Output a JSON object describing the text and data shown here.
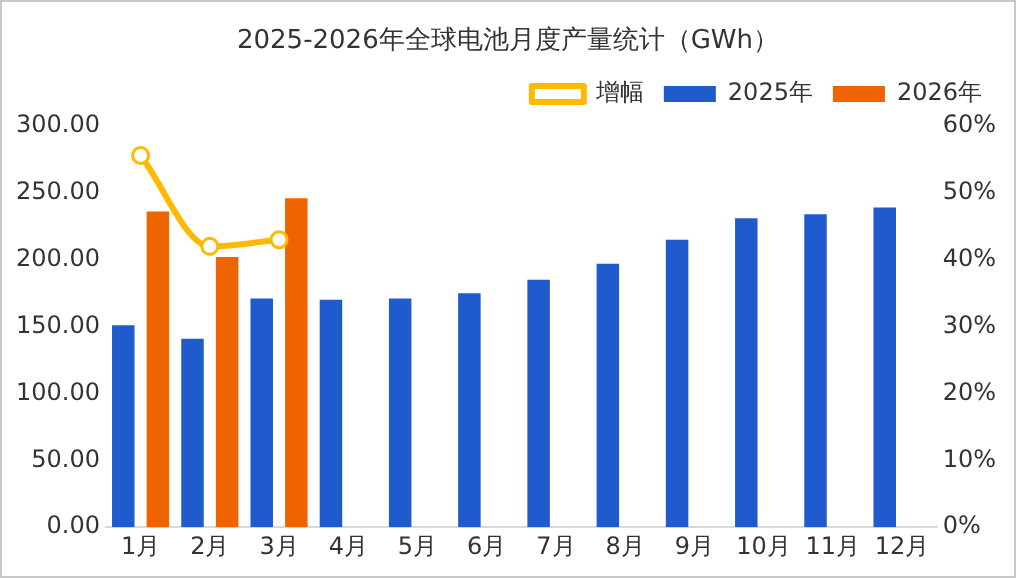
{
  "chart_data": {
    "type": "bar",
    "title": "2025-2026年全球电池月度产量统计（GWh）",
    "categories": [
      "1月",
      "2月",
      "3月",
      "4月",
      "5月",
      "6月",
      "7月",
      "8月",
      "9月",
      "10月",
      "11月",
      "12月"
    ],
    "series": [
      {
        "name": "2025年",
        "color": "#1f5bcc",
        "values": [
          151,
          141,
          171,
          170,
          171,
          175,
          185,
          197,
          215,
          231,
          234,
          239
        ]
      },
      {
        "name": "2026年",
        "color": "#f06400",
        "values": [
          236,
          202,
          246,
          null,
          null,
          null,
          null,
          null,
          null,
          null,
          null,
          null
        ]
      },
      {
        "name": "增幅",
        "type": "line",
        "axis": "y2",
        "color": "#ffb900",
        "marker": "circle",
        "values": [
          55.6,
          42,
          43,
          null,
          null,
          null,
          null,
          null,
          null,
          null,
          null,
          null
        ]
      }
    ],
    "ylim": [
      0,
      300
    ],
    "yticks": [
      {
        "value": 0,
        "label": "0.00"
      },
      {
        "value": 50,
        "label": "50.00"
      },
      {
        "value": 100,
        "label": "100.00"
      },
      {
        "value": 150,
        "label": "150.00"
      },
      {
        "value": 200,
        "label": "200.00"
      },
      {
        "value": 250,
        "label": "250.00"
      },
      {
        "value": 300,
        "label": "300.00"
      }
    ],
    "y2lim": [
      0,
      60
    ],
    "y2ticks": [
      {
        "value": 0,
        "label": "0%"
      },
      {
        "value": 10,
        "label": "10%"
      },
      {
        "value": 20,
        "label": "20%"
      },
      {
        "value": 30,
        "label": "30%"
      },
      {
        "value": 40,
        "label": "40%"
      },
      {
        "value": 50,
        "label": "50%"
      },
      {
        "value": 60,
        "label": "60%"
      }
    ],
    "grid": false,
    "legend": "top right"
  }
}
